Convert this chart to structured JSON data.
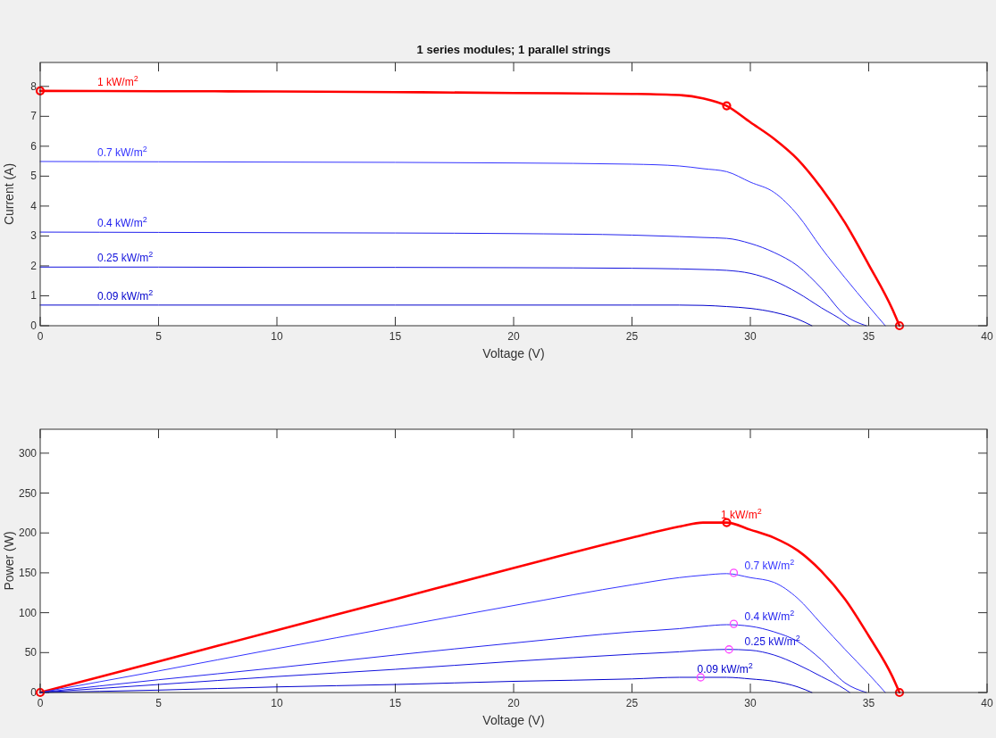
{
  "chart_data": [
    {
      "type": "line",
      "title": "1 series modules; 1 parallel strings",
      "xlabel": "Voltage (V)",
      "ylabel": "Current (A)",
      "xlim": [
        0,
        40
      ],
      "xticks": [
        0,
        5,
        10,
        15,
        20,
        25,
        30,
        35,
        40
      ],
      "ylim": [
        0,
        8.8
      ],
      "yticks": [
        0,
        1,
        2,
        3,
        4,
        5,
        6,
        7,
        8
      ],
      "grid": false,
      "series": [
        {
          "name": "1 kW/m$^{2}$",
          "color": "#ff0000",
          "x": [
            0,
            5,
            10,
            15,
            20,
            25,
            27,
            28,
            29,
            30,
            31,
            32,
            33,
            34,
            35,
            36,
            36.3
          ],
          "values": [
            7.85,
            7.84,
            7.83,
            7.81,
            7.78,
            7.75,
            7.71,
            7.6,
            7.35,
            6.8,
            6.25,
            5.56,
            4.6,
            3.44,
            2.04,
            0.55,
            0
          ]
        },
        {
          "name": "0.7 kW/m$^{2}$",
          "color": "#3333ff",
          "x": [
            0,
            5,
            10,
            15,
            20,
            25,
            27,
            28,
            29,
            30,
            31,
            32,
            33,
            34,
            35,
            35.7
          ],
          "values": [
            5.49,
            5.48,
            5.47,
            5.46,
            5.44,
            5.4,
            5.34,
            5.25,
            5.15,
            4.8,
            4.46,
            3.7,
            2.6,
            1.6,
            0.65,
            0
          ]
        },
        {
          "name": "0.4 kW/m$^{2}$",
          "color": "#2222ee",
          "x": [
            0,
            5,
            10,
            15,
            20,
            25,
            27,
            28,
            29,
            30,
            31,
            32,
            33,
            34,
            34.9
          ],
          "values": [
            3.13,
            3.12,
            3.11,
            3.1,
            3.08,
            3.03,
            2.98,
            2.95,
            2.92,
            2.75,
            2.45,
            2.0,
            1.25,
            0.35,
            0
          ]
        },
        {
          "name": "0.25 kW/m$^{2}$",
          "color": "#1111dd",
          "x": [
            0,
            5,
            10,
            15,
            20,
            25,
            27,
            28,
            29,
            30,
            31,
            32,
            33,
            34,
            34.2
          ],
          "values": [
            1.96,
            1.96,
            1.95,
            1.95,
            1.94,
            1.92,
            1.9,
            1.88,
            1.85,
            1.75,
            1.5,
            1.1,
            0.6,
            0.12,
            0
          ]
        },
        {
          "name": "0.09 kW/m$^{2}$",
          "color": "#0000cc",
          "x": [
            0,
            5,
            10,
            15,
            20,
            25,
            27,
            28,
            29,
            30,
            31,
            32,
            32.6
          ],
          "values": [
            0.69,
            0.69,
            0.69,
            0.69,
            0.69,
            0.69,
            0.69,
            0.68,
            0.64,
            0.58,
            0.45,
            0.22,
            0
          ]
        },
        {
          "type": "scatter",
          "marker": "circle",
          "color": "#ff0000",
          "x": [
            0,
            29,
            36.3
          ],
          "values": [
            7.85,
            7.35,
            0
          ]
        }
      ]
    },
    {
      "type": "line",
      "xlabel": "Voltage (V)",
      "ylabel": "Power (W)",
      "xlim": [
        0,
        40
      ],
      "xticks": [
        0,
        5,
        10,
        15,
        20,
        25,
        30,
        35,
        40
      ],
      "ylim": [
        0,
        330
      ],
      "yticks": [
        0,
        50,
        100,
        150,
        200,
        250,
        300
      ],
      "grid": false,
      "series": [
        {
          "name": "1 kW/m$^{2}$",
          "color": "#ff0000",
          "x": [
            0,
            5,
            10,
            15,
            20,
            25,
            27,
            28,
            29,
            30,
            31,
            32,
            33,
            34,
            35,
            36,
            36.3
          ],
          "values": [
            0,
            39,
            78,
            117,
            156,
            194,
            208,
            213,
            213,
            204,
            194,
            178,
            152,
            117,
            71,
            20,
            0
          ]
        },
        {
          "name": "0.7 kW/m$^{2}$",
          "color": "#3333ff",
          "x": [
            0,
            5,
            10,
            15,
            20,
            25,
            27,
            28,
            29,
            30,
            31,
            32,
            33,
            34,
            35,
            35.7
          ],
          "values": [
            0,
            27,
            55,
            82,
            109,
            135,
            144,
            147,
            149,
            144,
            138,
            118,
            86,
            54,
            23,
            0
          ]
        },
        {
          "name": "0.4 kW/m$^{2}$",
          "color": "#2222ee",
          "x": [
            0,
            5,
            10,
            15,
            20,
            25,
            27,
            28,
            29,
            30,
            31,
            32,
            33,
            34,
            34.9
          ],
          "values": [
            0,
            16,
            31,
            47,
            62,
            76,
            80,
            83,
            85,
            83,
            76,
            64,
            41,
            12,
            0
          ]
        },
        {
          "name": "0.25 kW/m$^{2}$",
          "color": "#1111dd",
          "x": [
            0,
            5,
            10,
            15,
            20,
            25,
            27,
            28,
            29,
            30,
            31,
            32,
            33,
            34,
            34.2
          ],
          "values": [
            0,
            10,
            20,
            29,
            39,
            48,
            51,
            53,
            54,
            53,
            47,
            35,
            20,
            4,
            0
          ]
        },
        {
          "name": "0.09 kW/m$^{2}$",
          "color": "#0000cc",
          "x": [
            0,
            5,
            10,
            15,
            20,
            25,
            27,
            28,
            29,
            30,
            31,
            32,
            32.6
          ],
          "values": [
            0,
            3,
            7,
            10,
            14,
            17,
            19,
            19,
            19,
            17,
            14,
            7,
            0
          ]
        },
        {
          "type": "scatter",
          "marker": "circle",
          "color": "#ff0000",
          "x": [
            0,
            29,
            36.3
          ],
          "values": [
            0,
            213,
            0
          ]
        },
        {
          "type": "scatter",
          "marker": "circle",
          "color": "#ff44ff",
          "x": [
            29.3,
            29.3,
            29.1,
            27.9
          ],
          "values": [
            150,
            86,
            54,
            19
          ]
        }
      ]
    }
  ]
}
